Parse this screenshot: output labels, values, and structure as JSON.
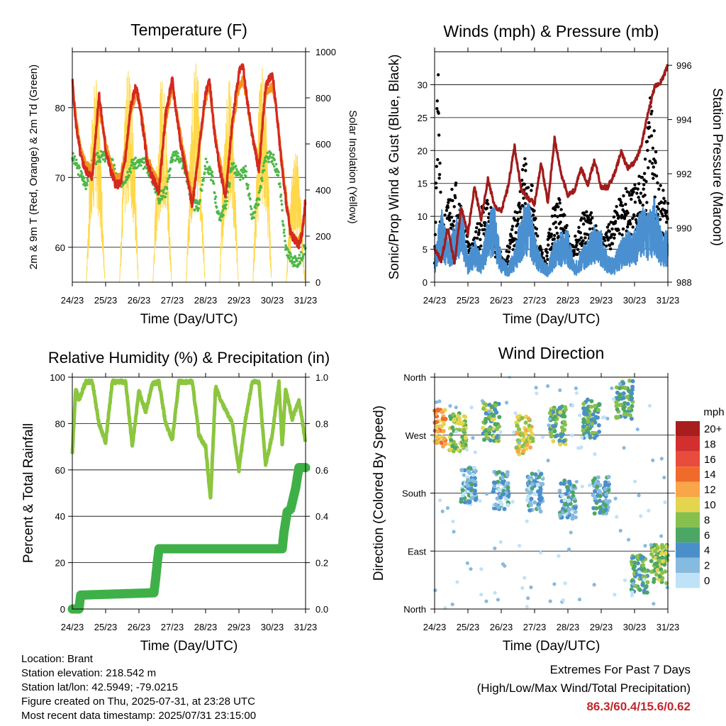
{
  "chart_data": [
    {
      "type": "line",
      "title": "Temperature (F)",
      "xlabel": "Time (Day/UTC)",
      "ylabel": "2m & 9m T (Red, Orange) & 2m Td (Green)",
      "ylabel_right": "Solar Insolation (Yellow)",
      "x_ticks": [
        "24/23",
        "25/23",
        "26/23",
        "27/23",
        "28/23",
        "29/23",
        "30/23",
        "31/23"
      ],
      "ylim": [
        55,
        88
      ],
      "y_ticks": [
        60,
        70,
        80
      ],
      "ylim_right": [
        0,
        1000
      ],
      "y_ticks_right": [
        0,
        200,
        400,
        600,
        800,
        1000
      ],
      "grid": "horizontal",
      "colors": {
        "t2m": "#d42a20",
        "t9m": "#f7931e",
        "td": "#4db847",
        "solar": "#ffd84a"
      },
      "series": [
        {
          "name": "2m T",
          "x_days": [
            0.0,
            0.1,
            0.25,
            0.4,
            0.6,
            0.8,
            1.0,
            1.15,
            1.3,
            1.45,
            1.6,
            1.75,
            1.9,
            2.0,
            2.12,
            2.25,
            2.4,
            2.6,
            2.8,
            3.0,
            3.1,
            3.25,
            3.4,
            3.6,
            3.8,
            4.0,
            4.12,
            4.25,
            4.4,
            4.6,
            4.8,
            5.0,
            5.12,
            5.25,
            5.4,
            5.6,
            5.8,
            6.0,
            6.12,
            6.2,
            6.3,
            6.4,
            6.55,
            6.7,
            6.8,
            6.9,
            7.0
          ],
          "values": [
            84,
            78,
            73,
            71,
            70,
            82,
            74,
            71,
            69,
            69,
            73,
            80,
            83,
            81,
            77,
            72,
            70,
            68,
            79,
            84,
            80,
            75,
            71,
            66,
            74,
            82,
            84,
            77,
            72,
            67,
            78,
            85,
            86,
            81,
            76,
            71,
            83,
            85,
            80,
            76,
            71,
            67,
            62,
            61,
            60,
            62,
            67
          ]
        },
        {
          "name": "9m T",
          "x_days": [
            0.0,
            0.1,
            0.25,
            0.4,
            0.6,
            0.8,
            1.0,
            1.15,
            1.3,
            1.45,
            1.6,
            1.75,
            1.9,
            2.0,
            2.12,
            2.25,
            2.4,
            2.6,
            2.8,
            3.0,
            3.1,
            3.25,
            3.4,
            3.6,
            3.8,
            4.0,
            4.12,
            4.25,
            4.4,
            4.6,
            4.8,
            5.0,
            5.12,
            5.25,
            5.4,
            5.6,
            5.8,
            6.0,
            6.12,
            6.2,
            6.3,
            6.4,
            6.55,
            6.7,
            6.8,
            6.9,
            7.0
          ],
          "values": [
            83,
            79,
            74,
            72,
            71,
            80,
            75,
            72,
            70,
            70,
            74,
            79,
            82,
            81,
            78,
            73,
            71,
            69,
            78,
            83,
            80,
            76,
            72,
            67,
            74,
            81,
            83,
            77,
            73,
            68,
            77,
            83,
            84,
            81,
            76,
            72,
            82,
            83,
            80,
            76,
            72,
            68,
            62,
            61,
            61,
            62,
            66
          ]
        },
        {
          "name": "2m Td",
          "x_days": [
            0.0,
            0.2,
            0.4,
            0.6,
            0.8,
            1.0,
            1.2,
            1.4,
            1.6,
            1.8,
            2.0,
            2.2,
            2.4,
            2.6,
            2.8,
            3.0,
            3.2,
            3.4,
            3.6,
            3.8,
            4.0,
            4.2,
            4.4,
            4.6,
            4.8,
            5.0,
            5.2,
            5.4,
            5.6,
            5.8,
            6.0,
            6.2,
            6.4,
            6.6,
            6.8,
            7.0
          ],
          "values": [
            73,
            71,
            69,
            72,
            73,
            73,
            72,
            69,
            70,
            72,
            72,
            72,
            70,
            67,
            68,
            73,
            73,
            71,
            66,
            66,
            72,
            70,
            64,
            66,
            72,
            70,
            71,
            64,
            67,
            73,
            73,
            70,
            60,
            58,
            58,
            60
          ]
        },
        {
          "name": "Solar Insolation",
          "peaks_days": [
            0.7,
            1.7,
            2.7,
            3.7,
            4.7,
            5.7,
            6.7
          ],
          "peak_values": [
            900,
            950,
            900,
            970,
            900,
            950,
            580
          ]
        }
      ]
    },
    {
      "type": "line",
      "title": "Winds (mph) & Pressure (mb)",
      "xlabel": "Time (Day/UTC)",
      "ylabel": "Sonic/Prop Wind & Gust (Blue, Black)",
      "ylabel_right": "Station Pressure (Maroon)",
      "x_ticks": [
        "24/23",
        "25/23",
        "26/23",
        "27/23",
        "28/23",
        "29/23",
        "30/23",
        "31/23"
      ],
      "ylim": [
        0,
        35
      ],
      "y_ticks": [
        0,
        5,
        10,
        15,
        20,
        25,
        30
      ],
      "ylim_right": [
        988,
        996.5
      ],
      "y_ticks_right": [
        988,
        990,
        992,
        994,
        996
      ],
      "grid": "horizontal",
      "colors": {
        "wind": "#4a90d0",
        "gust": "#000000",
        "pressure": "#a01c1c"
      },
      "series": [
        {
          "name": "Wind",
          "x_days": [
            0.0,
            0.2,
            0.4,
            0.6,
            0.8,
            1.0,
            1.2,
            1.4,
            1.6,
            1.8,
            2.0,
            2.2,
            2.4,
            2.6,
            2.8,
            3.0,
            3.2,
            3.4,
            3.6,
            3.8,
            4.0,
            4.2,
            4.4,
            4.6,
            4.8,
            5.0,
            5.2,
            5.4,
            5.6,
            5.8,
            6.0,
            6.2,
            6.4,
            6.6,
            6.8,
            7.0
          ],
          "values": [
            3,
            9,
            5,
            7,
            10,
            3,
            5,
            3,
            8,
            9,
            3,
            2,
            4,
            8,
            10,
            6,
            3,
            2,
            5,
            6,
            6,
            2,
            4,
            5,
            7,
            6,
            3,
            3,
            5,
            6,
            6,
            9,
            8,
            10,
            6,
            6
          ]
        },
        {
          "name": "Gust",
          "x_days": [
            0.0,
            0.1,
            0.2,
            0.3,
            0.5,
            0.7,
            0.9,
            1.1,
            1.3,
            1.5,
            1.7,
            1.9,
            2.1,
            2.3,
            2.5,
            2.7,
            2.9,
            3.1,
            3.3,
            3.5,
            3.7,
            3.9,
            4.1,
            4.3,
            4.5,
            4.7,
            4.9,
            5.1,
            5.3,
            5.5,
            5.7,
            5.9,
            6.1,
            6.3,
            6.5,
            6.7,
            6.9,
            7.0
          ],
          "values": [
            5,
            31.5,
            7,
            9,
            13,
            14,
            8,
            5,
            8,
            12,
            10,
            5,
            3,
            7,
            11,
            17,
            14,
            6,
            3,
            9,
            12,
            9,
            5,
            7,
            10,
            10,
            7,
            6,
            9,
            11,
            13,
            12,
            14,
            17,
            28,
            14,
            12,
            11
          ]
        },
        {
          "name": "Station Pressure",
          "x_days": [
            0.0,
            0.2,
            0.4,
            0.6,
            0.8,
            1.0,
            1.2,
            1.4,
            1.6,
            1.8,
            2.0,
            2.2,
            2.4,
            2.6,
            2.8,
            3.0,
            3.2,
            3.4,
            3.6,
            3.8,
            4.0,
            4.2,
            4.4,
            4.6,
            4.8,
            5.0,
            5.2,
            5.4,
            5.6,
            5.8,
            6.0,
            6.2,
            6.4,
            6.6,
            6.8,
            7.0
          ],
          "values": [
            989.2,
            988.8,
            990.0,
            988.7,
            990.8,
            989.8,
            991.5,
            990.3,
            991.8,
            990.8,
            990.6,
            991.5,
            993.0,
            991.4,
            991.1,
            990.9,
            992.4,
            990.9,
            993.3,
            992.0,
            991.2,
            991.4,
            992.2,
            991.6,
            992.5,
            991.5,
            991.5,
            992.0,
            992.8,
            992.2,
            992.4,
            993.0,
            994.2,
            995.2,
            995.4,
            996.0
          ]
        }
      ]
    },
    {
      "type": "line",
      "title": "Relative Humidity (%) & Precipitation (in)",
      "xlabel": "Time (Day/UTC)",
      "ylabel": "Percent & Total Rainfall",
      "x_ticks": [
        "24/23",
        "25/23",
        "26/23",
        "27/23",
        "28/23",
        "29/23",
        "30/23",
        "31/23"
      ],
      "ylim": [
        0,
        100
      ],
      "y_ticks": [
        0,
        20,
        40,
        60,
        80,
        100
      ],
      "ylim_right": [
        0,
        1.0
      ],
      "y_ticks_right": [
        "0.0",
        "0.2",
        "0.4",
        "0.6",
        "0.8",
        "1.0"
      ],
      "grid": "horizontal",
      "colors": {
        "rh": "#8cc63f",
        "precip": "#3fb048"
      },
      "series": [
        {
          "name": "Relative Humidity",
          "x_days": [
            0.0,
            0.1,
            0.2,
            0.4,
            0.6,
            0.8,
            1.0,
            1.2,
            1.4,
            1.6,
            1.8,
            2.0,
            2.2,
            2.4,
            2.6,
            2.8,
            3.0,
            3.2,
            3.4,
            3.6,
            3.8,
            4.0,
            4.15,
            4.3,
            4.45,
            4.6,
            4.8,
            5.0,
            5.2,
            5.4,
            5.6,
            5.8,
            6.0,
            6.2,
            6.3,
            6.4,
            6.6,
            6.8,
            7.0
          ],
          "values": [
            67,
            95,
            90,
            98,
            98,
            80,
            72,
            98,
            98,
            98,
            70,
            94,
            85,
            97,
            98,
            80,
            73,
            98,
            98,
            98,
            75,
            70,
            47,
            96,
            90,
            86,
            80,
            60,
            82,
            98,
            98,
            62,
            75,
            98,
            70,
            95,
            82,
            90,
            72
          ]
        },
        {
          "name": "Total Precipitation",
          "x_days": [
            0.0,
            0.2,
            0.25,
            2.45,
            2.5,
            2.55,
            2.6,
            6.3,
            6.35,
            6.45,
            6.55,
            6.7,
            6.8,
            7.0
          ],
          "values": [
            0.0,
            0.0,
            0.06,
            0.07,
            0.13,
            0.2,
            0.26,
            0.26,
            0.33,
            0.42,
            0.43,
            0.52,
            0.61,
            0.61
          ]
        }
      ]
    },
    {
      "type": "scatter",
      "title": "Wind Direction",
      "xlabel": "Time (Day/UTC)",
      "ylabel": "Direction (Colored By Speed)",
      "x_ticks": [
        "24/23",
        "25/23",
        "26/23",
        "27/23",
        "28/23",
        "29/23",
        "30/23",
        "31/23"
      ],
      "y_ticks": [
        "North",
        "East",
        "South",
        "West",
        "North"
      ],
      "ylim_degrees": [
        0,
        360
      ],
      "grid": "horizontal",
      "legend_title": "mph",
      "legend_labels": [
        "20+",
        "18",
        "16",
        "14",
        "12",
        "10",
        "8",
        "6",
        "4",
        "2",
        "0"
      ],
      "legend_colors": [
        "#a81d1d",
        "#d32f2f",
        "#e94b3c",
        "#f06a2c",
        "#f9a64a",
        "#e3d64e",
        "#87c04f",
        "#4ca764",
        "#4a8fca",
        "#87badf",
        "#bfe2f6"
      ],
      "clusters": [
        {
          "day": 0.1,
          "dir_center": 280,
          "speed": 12
        },
        {
          "day": 0.7,
          "dir_center": 275,
          "speed": 8
        },
        {
          "day": 1.7,
          "dir_center": 290,
          "speed": 7
        },
        {
          "day": 2.7,
          "dir_center": 270,
          "speed": 10
        },
        {
          "day": 3.7,
          "dir_center": 285,
          "speed": 7
        },
        {
          "day": 4.7,
          "dir_center": 295,
          "speed": 6
        },
        {
          "day": 5.7,
          "dir_center": 325,
          "speed": 6
        },
        {
          "day": 1.0,
          "dir_center": 190,
          "speed": 3
        },
        {
          "day": 2.0,
          "dir_center": 185,
          "speed": 3
        },
        {
          "day": 3.0,
          "dir_center": 180,
          "speed": 3
        },
        {
          "day": 4.0,
          "dir_center": 170,
          "speed": 3
        },
        {
          "day": 5.0,
          "dir_center": 175,
          "speed": 4
        },
        {
          "day": 6.15,
          "dir_center": 55,
          "speed": 6
        },
        {
          "day": 6.75,
          "dir_center": 70,
          "speed": 8
        }
      ]
    }
  ],
  "info": {
    "location": "Location: Brant",
    "elevation": "Station elevation: 218.542 m",
    "latlon": "Station lat/lon: 42.5949; -79.0215",
    "created": "Figure created on Thu, 2025-07-31, at 23:28 UTC",
    "recent": "Most recent data timestamp: 2025/07/31 23:15:00"
  },
  "extremes": {
    "line1": "Extremes For Past 7 Days",
    "line2": "(High/Low/Max Wind/Total Precipitation)",
    "values": "86.3/60.4/15.6/0.62"
  }
}
